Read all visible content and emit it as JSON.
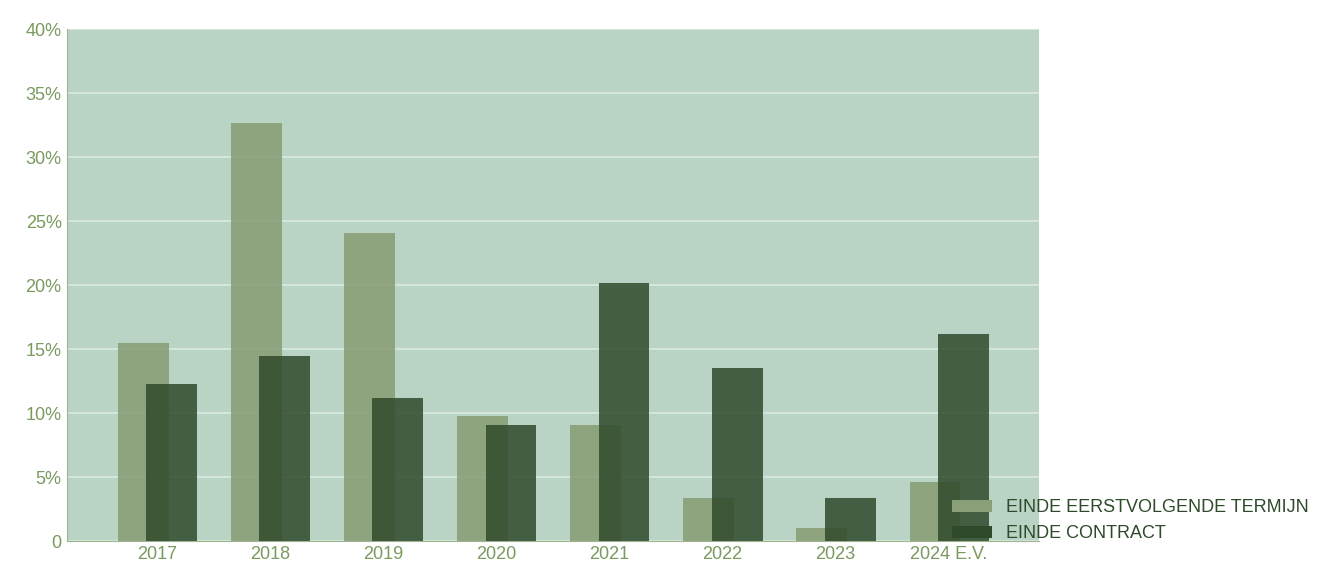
{
  "chart_data": {
    "type": "bar",
    "categories": [
      "2017",
      "2018",
      "2019",
      "2020",
      "2021",
      "2022",
      "2023",
      "2024 E.V."
    ],
    "series": [
      {
        "name": "EINDE EERSTVOLGENDE TERMIJN",
        "color": "#8a9f78",
        "values": [
          15.5,
          32.7,
          24.1,
          9.8,
          9.1,
          3.4,
          1.0,
          4.6
        ]
      },
      {
        "name": "EINDE CONTRACT",
        "color": "#2f4a2b",
        "values": [
          12.3,
          14.5,
          11.2,
          9.1,
          20.2,
          13.5,
          3.4,
          16.2
        ]
      }
    ],
    "ylim": [
      0,
      40
    ],
    "yticks": [
      0,
      {
        "value": 5,
        "label": "5%"
      },
      {
        "value": 10,
        "label": "10%"
      },
      {
        "value": 15,
        "label": "15%"
      },
      {
        "value": 20,
        "label": "20%"
      },
      {
        "value": 25,
        "label": "25%"
      },
      {
        "value": 30,
        "label": "30%"
      },
      {
        "value": 35,
        "label": "35%"
      },
      {
        "value": 40,
        "label": "40%"
      }
    ],
    "grid": true,
    "legend": "lower right"
  }
}
